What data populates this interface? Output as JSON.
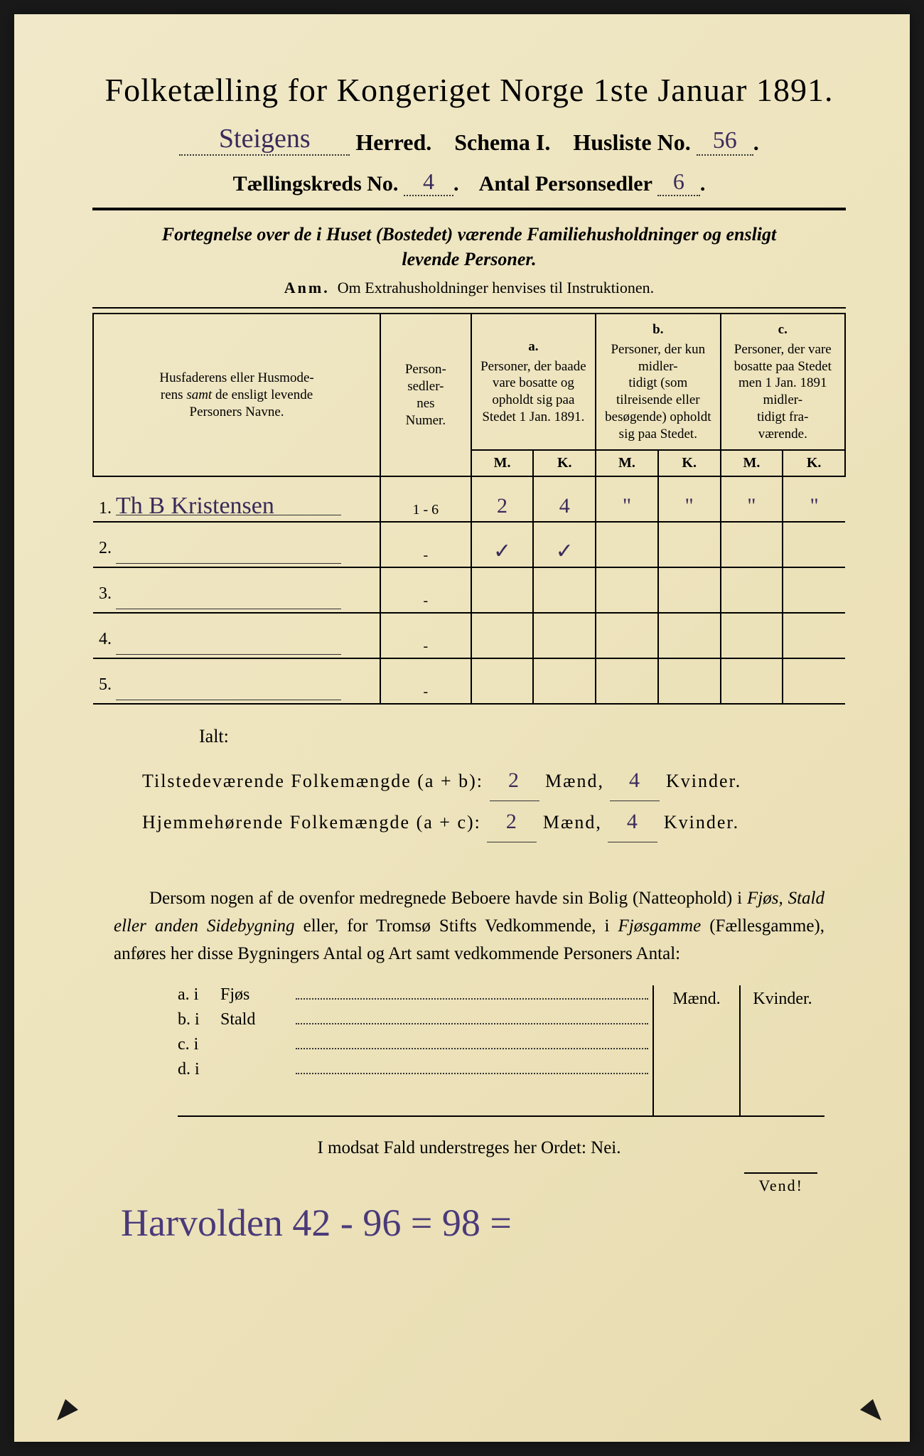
{
  "header": {
    "title": "Folketælling for Kongeriget Norge 1ste Januar 1891.",
    "herred_hand": "Steigens",
    "herred_label": "Herred.",
    "schema_label": "Schema I.",
    "husliste_label": "Husliste No.",
    "husliste_hand": "56",
    "kreds_label": "Tællingskreds No.",
    "kreds_hand": "4",
    "antal_label": "Antal Personsedler",
    "antal_hand": "6"
  },
  "subtitle": {
    "line1": "Fortegnelse over de i Huset (Bostedet) værende Familiehusholdninger og ensligt",
    "line2": "levende Personer.",
    "anm_label": "Anm.",
    "anm_text": "Om Extrahusholdninger henvises til Instruktionen."
  },
  "table": {
    "col1": "Husfaderens eller Husmoderens samt de ensligt levende Personers Navne.",
    "col2": "Personsedlernes Numer.",
    "colA_label": "a.",
    "colA": "Personer, der baade vare bosatte og opholdt sig paa Stedet 1 Jan. 1891.",
    "colB_label": "b.",
    "colB": "Personer, der kun midlertidigt (som tilreisende eller besøgende) opholdt sig paa Stedet.",
    "colC_label": "c.",
    "colC": "Personer, der vare bosatte paa Stedet men 1 Jan. 1891 midlertidigt fraværende.",
    "M": "M.",
    "K": "K.",
    "rows": [
      {
        "n": "1.",
        "name": "Th B Kristensen",
        "num": "1 - 6",
        "aM": "2",
        "aK": "4",
        "bM": "\"",
        "bK": "\"",
        "cM": "\"",
        "cK": "\""
      },
      {
        "n": "2.",
        "name": "",
        "num": "-",
        "aM": "✓",
        "aK": "✓",
        "bM": "",
        "bK": "",
        "cM": "",
        "cK": ""
      },
      {
        "n": "3.",
        "name": "",
        "num": "-",
        "aM": "",
        "aK": "",
        "bM": "",
        "bK": "",
        "cM": "",
        "cK": ""
      },
      {
        "n": "4.",
        "name": "",
        "num": "-",
        "aM": "",
        "aK": "",
        "bM": "",
        "bK": "",
        "cM": "",
        "cK": ""
      },
      {
        "n": "5.",
        "name": "",
        "num": "-",
        "aM": "",
        "aK": "",
        "bM": "",
        "bK": "",
        "cM": "",
        "cK": ""
      }
    ]
  },
  "totals": {
    "ialt": "Ialt:",
    "line1_label": "Tilstedeværende Folkemængde (a + b):",
    "line2_label": "Hjemmehørende Folkemængde (a + c):",
    "maend": "Mænd,",
    "kvinder": "Kvinder.",
    "v1m": "2",
    "v1k": "4",
    "v2m": "2",
    "v2k": "4"
  },
  "para": "Dersom nogen af de ovenfor medregnede Beboere havde sin Bolig (Natteophold) i Fjøs, Stald eller anden Sidebygning eller, for Tromsø Stifts Vedkommende, i Fjøsgamme (Fællesgamme), anføres her disse Bygningers Antal og Art samt vedkommende Personers Antal:",
  "lodging": {
    "header_m": "Mænd.",
    "header_k": "Kvinder.",
    "rows": [
      {
        "label": "a.  i",
        "mid": "Fjøs"
      },
      {
        "label": "b.  i",
        "mid": "Stald"
      },
      {
        "label": "c.  i",
        "mid": ""
      },
      {
        "label": "d.  i",
        "mid": ""
      }
    ]
  },
  "nei": "I modsat Fald understreges her Ordet: Nei.",
  "vend": "Vend!",
  "bottom_hand": "Harvolden 42 - 96 = 98 ="
}
